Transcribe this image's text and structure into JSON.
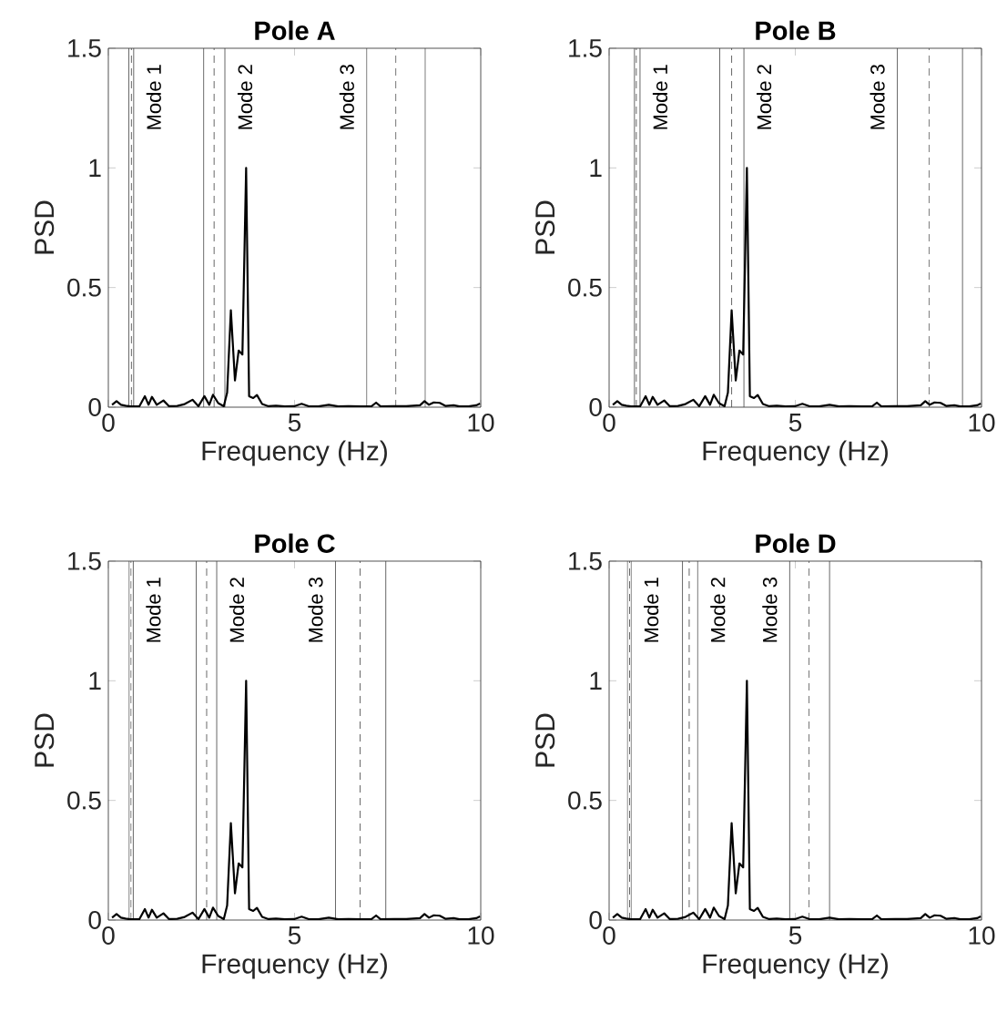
{
  "chart_data": [
    {
      "type": "line",
      "title": "Pole A",
      "xlabel": "Frequency (Hz)",
      "ylabel": "PSD",
      "color": "#000000",
      "x": [
        0.1,
        0.22,
        0.34,
        0.46,
        0.59,
        0.83,
        0.98,
        1.08,
        1.17,
        1.3,
        1.48,
        1.63,
        1.85,
        2.05,
        2.26,
        2.42,
        2.58,
        2.71,
        2.81,
        2.95,
        3.1,
        3.19,
        3.29,
        3.4,
        3.5,
        3.6,
        3.7,
        3.78,
        3.89,
        3.99,
        4.13,
        4.3,
        4.5,
        4.74,
        4.99,
        5.19,
        5.4,
        5.64,
        5.92,
        6.17,
        6.45,
        6.78,
        7.07,
        7.19,
        7.31,
        7.68,
        8.0,
        8.37,
        8.49,
        8.61,
        8.74,
        8.9,
        9.06,
        9.27,
        9.43,
        9.67,
        9.88,
        9.98
      ],
      "values": [
        0.01,
        0.025,
        0.01,
        0.006,
        0.003,
        0.003,
        0.046,
        0.01,
        0.043,
        0.01,
        0.028,
        0.004,
        0.005,
        0.013,
        0.031,
        0.004,
        0.046,
        0.01,
        0.052,
        0.017,
        0.004,
        0.061,
        0.405,
        0.112,
        0.237,
        0.22,
        1.0,
        0.046,
        0.038,
        0.051,
        0.013,
        0.004,
        0.006,
        0.003,
        0.004,
        0.014,
        0.003,
        0.003,
        0.01,
        0.003,
        0.004,
        0.003,
        0.004,
        0.019,
        0.003,
        0.004,
        0.004,
        0.008,
        0.025,
        0.01,
        0.02,
        0.018,
        0.005,
        0.008,
        0.003,
        0.003,
        0.008,
        0.015
      ],
      "xlim": [
        0,
        10
      ],
      "ylim": [
        0,
        1.5
      ],
      "xticks": [
        0,
        5,
        10
      ],
      "yticks": [
        0,
        0.5,
        1,
        1.5
      ],
      "ref_lines": [
        {
          "axis": "x",
          "value": 0.55,
          "color": "#404040",
          "line_style": "solid"
        },
        {
          "axis": "x",
          "value": 0.62,
          "color": "#404040",
          "line_style": "dashed"
        },
        {
          "axis": "x",
          "value": 0.68,
          "color": "#404040",
          "line_style": "solid"
        },
        {
          "axis": "x",
          "value": 2.56,
          "color": "#404040",
          "line_style": "solid"
        },
        {
          "axis": "x",
          "value": 2.84,
          "color": "#404040",
          "line_style": "dashed"
        },
        {
          "axis": "x",
          "value": 3.13,
          "color": "#404040",
          "line_style": "solid"
        },
        {
          "axis": "x",
          "value": 6.94,
          "color": "#404040",
          "line_style": "solid"
        },
        {
          "axis": "x",
          "value": 7.72,
          "color": "#404040",
          "line_style": "dashed"
        },
        {
          "axis": "x",
          "value": 8.51,
          "color": "#404040",
          "line_style": "solid"
        }
      ],
      "annotations": [
        "Mode 1",
        "Mode 2",
        "Mode 3"
      ]
    },
    {
      "type": "line",
      "title": "Pole B",
      "xlabel": "Frequency (Hz)",
      "ylabel": "PSD",
      "color": "#000000",
      "x": [
        0.1,
        0.22,
        0.34,
        0.46,
        0.59,
        0.83,
        0.98,
        1.08,
        1.17,
        1.3,
        1.48,
        1.63,
        1.85,
        2.05,
        2.26,
        2.42,
        2.58,
        2.71,
        2.81,
        2.95,
        3.1,
        3.19,
        3.29,
        3.4,
        3.5,
        3.6,
        3.7,
        3.78,
        3.89,
        3.99,
        4.13,
        4.3,
        4.5,
        4.74,
        4.99,
        5.19,
        5.4,
        5.64,
        5.92,
        6.17,
        6.45,
        6.78,
        7.07,
        7.19,
        7.31,
        7.68,
        8.0,
        8.37,
        8.49,
        8.61,
        8.74,
        8.9,
        9.06,
        9.27,
        9.43,
        9.67,
        9.88,
        9.98
      ],
      "values": [
        0.01,
        0.025,
        0.01,
        0.006,
        0.003,
        0.003,
        0.046,
        0.01,
        0.043,
        0.01,
        0.028,
        0.004,
        0.005,
        0.013,
        0.031,
        0.004,
        0.046,
        0.01,
        0.052,
        0.017,
        0.004,
        0.061,
        0.405,
        0.112,
        0.237,
        0.22,
        1.0,
        0.046,
        0.038,
        0.051,
        0.013,
        0.004,
        0.006,
        0.003,
        0.004,
        0.014,
        0.003,
        0.003,
        0.01,
        0.003,
        0.004,
        0.003,
        0.004,
        0.019,
        0.003,
        0.004,
        0.004,
        0.008,
        0.025,
        0.01,
        0.02,
        0.018,
        0.005,
        0.008,
        0.003,
        0.003,
        0.008,
        0.015
      ],
      "xlim": [
        0,
        10
      ],
      "ylim": [
        0,
        1.5
      ],
      "xticks": [
        0,
        5,
        10
      ],
      "yticks": [
        0,
        0.5,
        1,
        1.5
      ],
      "ref_lines": [
        {
          "axis": "x",
          "value": 0.68,
          "color": "#404040",
          "line_style": "solid"
        },
        {
          "axis": "x",
          "value": 0.73,
          "color": "#404040",
          "line_style": "dashed"
        },
        {
          "axis": "x",
          "value": 0.83,
          "color": "#404040",
          "line_style": "solid"
        },
        {
          "axis": "x",
          "value": 2.97,
          "color": "#404040",
          "line_style": "solid"
        },
        {
          "axis": "x",
          "value": 3.29,
          "color": "#404040",
          "line_style": "dashed"
        },
        {
          "axis": "x",
          "value": 3.62,
          "color": "#404040",
          "line_style": "solid"
        },
        {
          "axis": "x",
          "value": 7.74,
          "color": "#404040",
          "line_style": "solid"
        },
        {
          "axis": "x",
          "value": 8.59,
          "color": "#404040",
          "line_style": "dashed"
        },
        {
          "axis": "x",
          "value": 9.49,
          "color": "#404040",
          "line_style": "solid"
        }
      ],
      "annotations": [
        "Mode 1",
        "Mode 2",
        "Mode 3"
      ]
    },
    {
      "type": "line",
      "title": "Pole C",
      "xlabel": "Frequency (Hz)",
      "ylabel": "PSD",
      "color": "#000000",
      "x": [
        0.1,
        0.22,
        0.34,
        0.46,
        0.59,
        0.83,
        0.98,
        1.08,
        1.17,
        1.3,
        1.48,
        1.63,
        1.85,
        2.05,
        2.26,
        2.42,
        2.58,
        2.71,
        2.81,
        2.95,
        3.1,
        3.19,
        3.29,
        3.4,
        3.5,
        3.6,
        3.7,
        3.78,
        3.89,
        3.99,
        4.13,
        4.3,
        4.5,
        4.74,
        4.99,
        5.19,
        5.4,
        5.64,
        5.92,
        6.17,
        6.45,
        6.78,
        7.07,
        7.19,
        7.31,
        7.68,
        8.0,
        8.37,
        8.49,
        8.61,
        8.74,
        8.9,
        9.06,
        9.27,
        9.43,
        9.67,
        9.88,
        9.98
      ],
      "values": [
        0.01,
        0.025,
        0.01,
        0.006,
        0.003,
        0.003,
        0.046,
        0.01,
        0.043,
        0.01,
        0.028,
        0.004,
        0.005,
        0.013,
        0.031,
        0.004,
        0.046,
        0.01,
        0.052,
        0.017,
        0.004,
        0.061,
        0.405,
        0.112,
        0.237,
        0.22,
        1.0,
        0.046,
        0.038,
        0.051,
        0.013,
        0.004,
        0.006,
        0.003,
        0.004,
        0.014,
        0.003,
        0.003,
        0.01,
        0.003,
        0.004,
        0.003,
        0.004,
        0.019,
        0.003,
        0.004,
        0.004,
        0.008,
        0.025,
        0.01,
        0.02,
        0.018,
        0.005,
        0.008,
        0.003,
        0.003,
        0.008,
        0.015
      ],
      "xlim": [
        0,
        10
      ],
      "ylim": [
        0,
        1.5
      ],
      "xticks": [
        0,
        5,
        10
      ],
      "yticks": [
        0,
        0.5,
        1,
        1.5
      ],
      "ref_lines": [
        {
          "axis": "x",
          "value": 0.56,
          "color": "#404040",
          "line_style": "solid"
        },
        {
          "axis": "x",
          "value": 0.61,
          "color": "#404040",
          "line_style": "dashed"
        },
        {
          "axis": "x",
          "value": 0.67,
          "color": "#404040",
          "line_style": "solid"
        },
        {
          "axis": "x",
          "value": 2.36,
          "color": "#404040",
          "line_style": "solid"
        },
        {
          "axis": "x",
          "value": 2.64,
          "color": "#404040",
          "line_style": "dashed"
        },
        {
          "axis": "x",
          "value": 2.91,
          "color": "#404040",
          "line_style": "solid"
        },
        {
          "axis": "x",
          "value": 6.1,
          "color": "#404040",
          "line_style": "solid"
        },
        {
          "axis": "x",
          "value": 6.76,
          "color": "#404040",
          "line_style": "dashed"
        },
        {
          "axis": "x",
          "value": 7.45,
          "color": "#404040",
          "line_style": "solid"
        }
      ],
      "annotations": [
        "Mode 1",
        "Mode 2",
        "Mode 3"
      ]
    },
    {
      "type": "line",
      "title": "Pole D",
      "xlabel": "Frequency (Hz)",
      "ylabel": "PSD",
      "color": "#000000",
      "x": [
        0.1,
        0.22,
        0.34,
        0.46,
        0.59,
        0.83,
        0.98,
        1.08,
        1.17,
        1.3,
        1.48,
        1.63,
        1.85,
        2.05,
        2.26,
        2.42,
        2.58,
        2.71,
        2.81,
        2.95,
        3.1,
        3.19,
        3.29,
        3.4,
        3.5,
        3.6,
        3.7,
        3.78,
        3.89,
        3.99,
        4.13,
        4.3,
        4.5,
        4.74,
        4.99,
        5.19,
        5.4,
        5.64,
        5.92,
        6.17,
        6.45,
        6.78,
        7.07,
        7.19,
        7.31,
        7.68,
        8.0,
        8.37,
        8.49,
        8.61,
        8.74,
        8.9,
        9.06,
        9.27,
        9.43,
        9.67,
        9.88,
        9.98
      ],
      "values": [
        0.01,
        0.025,
        0.01,
        0.006,
        0.003,
        0.003,
        0.046,
        0.01,
        0.043,
        0.01,
        0.028,
        0.004,
        0.005,
        0.013,
        0.031,
        0.004,
        0.046,
        0.01,
        0.052,
        0.017,
        0.004,
        0.061,
        0.405,
        0.112,
        0.237,
        0.22,
        1.0,
        0.046,
        0.038,
        0.051,
        0.013,
        0.004,
        0.006,
        0.003,
        0.004,
        0.014,
        0.003,
        0.003,
        0.01,
        0.003,
        0.004,
        0.003,
        0.004,
        0.019,
        0.003,
        0.004,
        0.004,
        0.008,
        0.025,
        0.01,
        0.02,
        0.018,
        0.005,
        0.008,
        0.003,
        0.003,
        0.008,
        0.015
      ],
      "xlim": [
        0,
        10
      ],
      "ylim": [
        0,
        1.5
      ],
      "xticks": [
        0,
        5,
        10
      ],
      "yticks": [
        0,
        0.5,
        1,
        1.5
      ],
      "ref_lines": [
        {
          "axis": "x",
          "value": 0.49,
          "color": "#404040",
          "line_style": "solid"
        },
        {
          "axis": "x",
          "value": 0.55,
          "color": "#404040",
          "line_style": "dashed"
        },
        {
          "axis": "x",
          "value": 0.59,
          "color": "#404040",
          "line_style": "solid"
        },
        {
          "axis": "x",
          "value": 1.97,
          "color": "#404040",
          "line_style": "solid"
        },
        {
          "axis": "x",
          "value": 2.15,
          "color": "#404040",
          "line_style": "dashed"
        },
        {
          "axis": "x",
          "value": 2.38,
          "color": "#404040",
          "line_style": "solid"
        },
        {
          "axis": "x",
          "value": 4.85,
          "color": "#404040",
          "line_style": "solid"
        },
        {
          "axis": "x",
          "value": 5.37,
          "color": "#404040",
          "line_style": "dashed"
        },
        {
          "axis": "x",
          "value": 5.92,
          "color": "#404040",
          "line_style": "solid"
        }
      ],
      "annotations": [
        "Mode 1",
        "Mode 2",
        "Mode 3"
      ]
    }
  ]
}
